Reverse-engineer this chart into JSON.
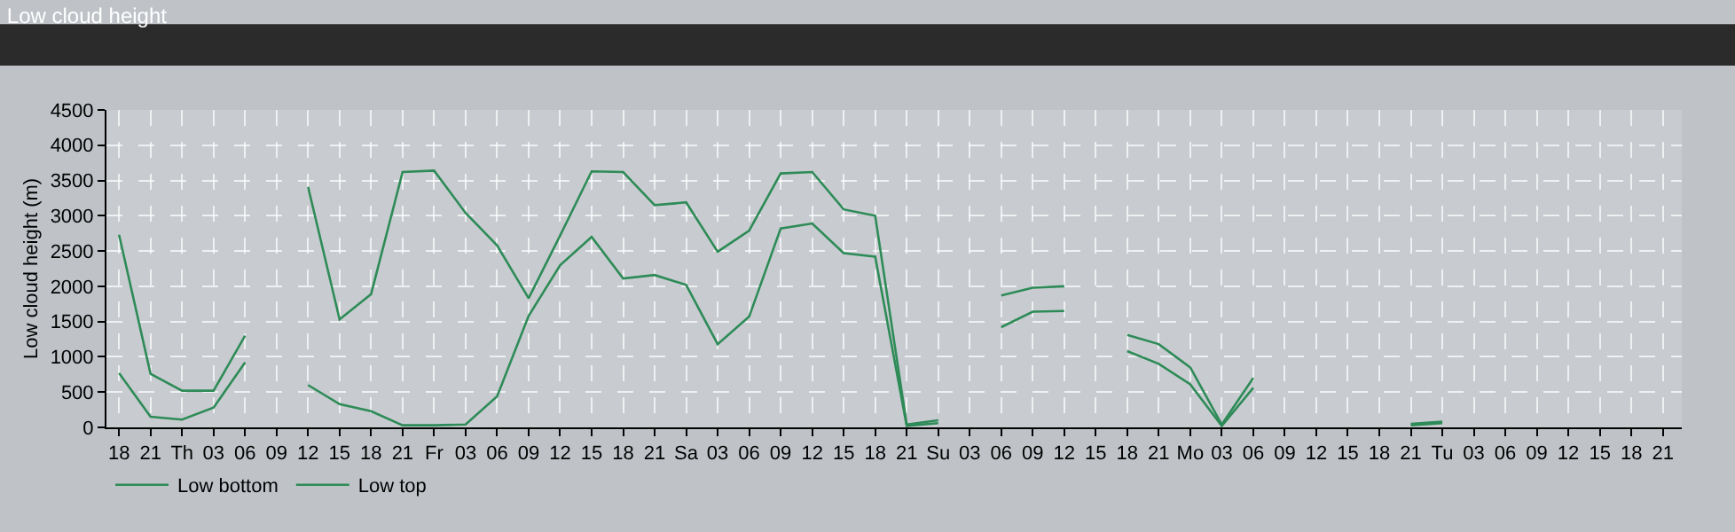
{
  "chart_data": {
    "type": "line",
    "title": "Low cloud height",
    "ylabel": "Low cloud height (m)",
    "categories": [
      "18",
      "21",
      "Th",
      "03",
      "06",
      "09",
      "12",
      "15",
      "18",
      "21",
      "Fr",
      "03",
      "06",
      "09",
      "12",
      "15",
      "18",
      "21",
      "Sa",
      "03",
      "06",
      "09",
      "12",
      "15",
      "18",
      "21",
      "Su",
      "03",
      "06",
      "09",
      "12",
      "15",
      "18",
      "21",
      "Mo",
      "03",
      "06",
      "09",
      "12",
      "15",
      "18",
      "21",
      "Tu",
      "03",
      "06",
      "09",
      "12",
      "15",
      "18",
      "21"
    ],
    "series": [
      {
        "name": "Low bottom",
        "color": "#2e8b57",
        "values": [
          770,
          150,
          110,
          280,
          920,
          null,
          600,
          330,
          230,
          30,
          30,
          40,
          440,
          1580,
          2300,
          2700,
          2110,
          2160,
          2020,
          1180,
          1570,
          2820,
          2890,
          2470,
          2420,
          20,
          60,
          null,
          1420,
          1640,
          1650,
          null,
          1080,
          900,
          610,
          20,
          560,
          null,
          null,
          null,
          null,
          30,
          60,
          null,
          null,
          null,
          null,
          null,
          null,
          null
        ]
      },
      {
        "name": "Low top",
        "color": "#2e8b57",
        "values": [
          2730,
          760,
          520,
          520,
          1300,
          null,
          3410,
          1530,
          1890,
          3620,
          3640,
          3040,
          2580,
          1830,
          2720,
          3630,
          3620,
          3150,
          3190,
          2490,
          2790,
          3600,
          3620,
          3090,
          3000,
          40,
          100,
          null,
          1870,
          1980,
          2000,
          null,
          1310,
          1180,
          850,
          40,
          700,
          null,
          null,
          null,
          null,
          50,
          80,
          null,
          null,
          null,
          null,
          null,
          null,
          null
        ]
      }
    ],
    "ylim": [
      0,
      4500
    ],
    "yticks": [
      0,
      500,
      1000,
      1500,
      2000,
      2500,
      3000,
      3500,
      4000,
      4500
    ],
    "grid": true,
    "legend": "bottom left",
    "marker": "none",
    "line_style": "solid"
  }
}
